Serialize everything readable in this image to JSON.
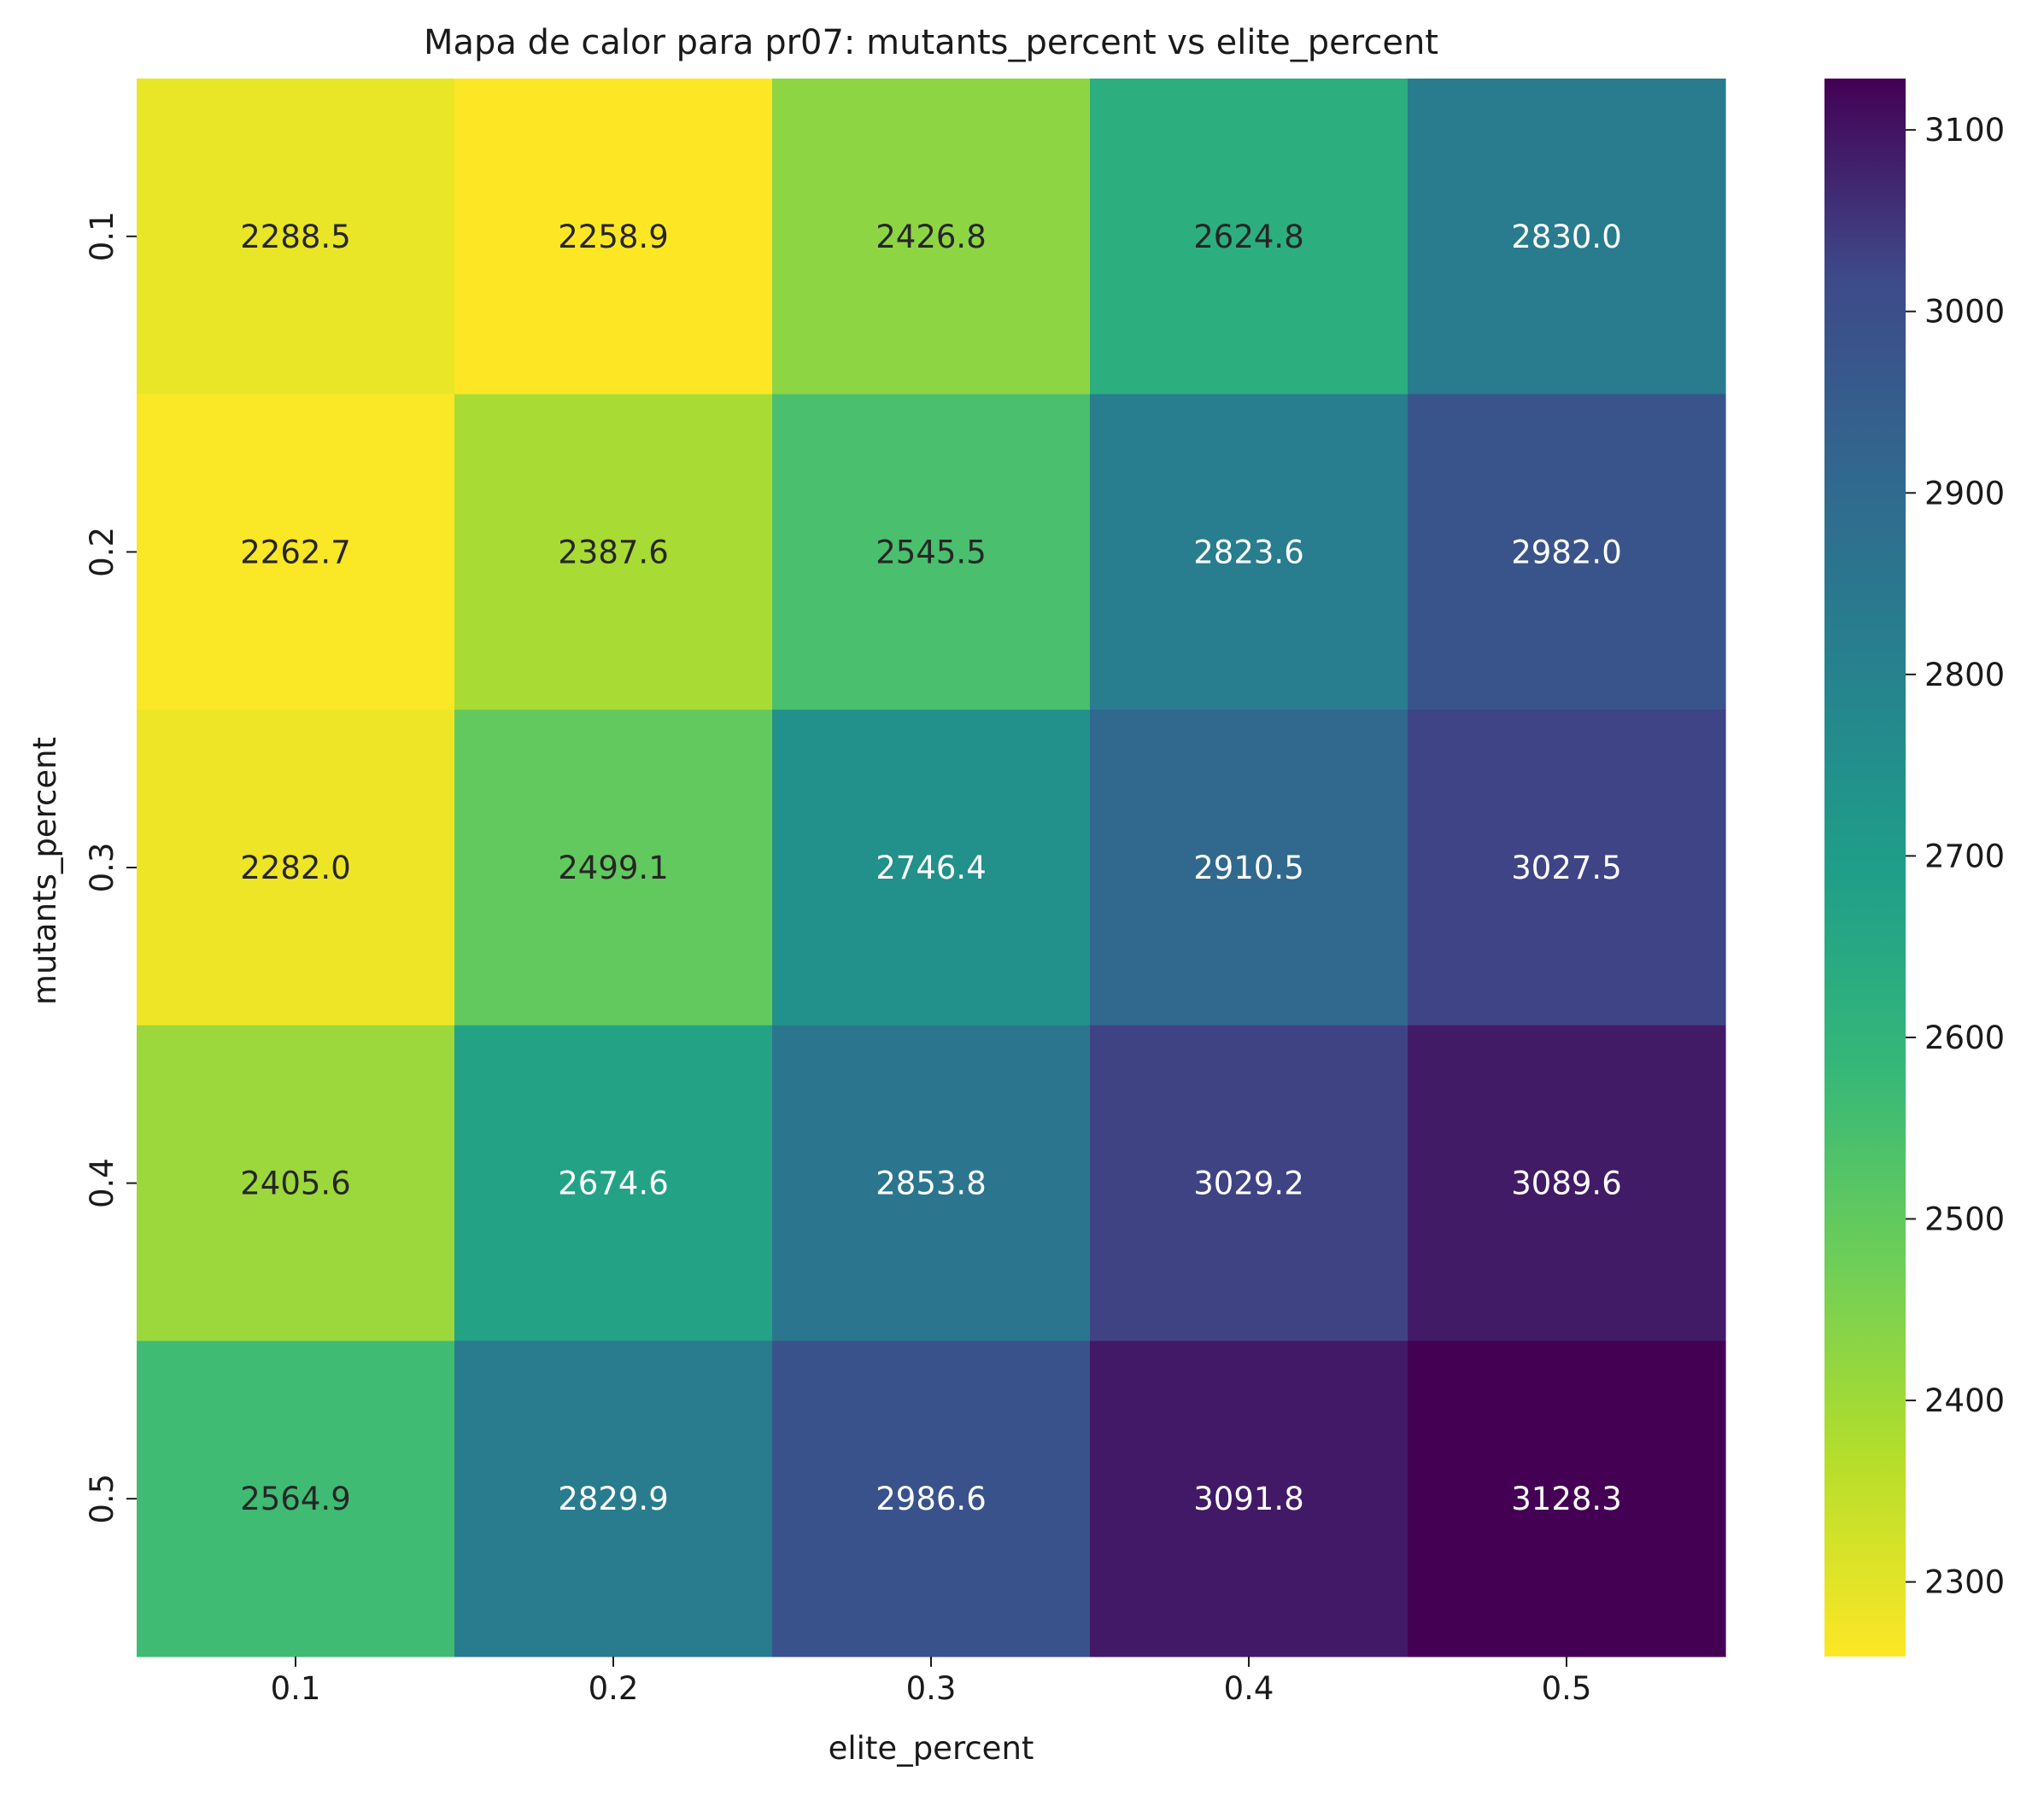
{
  "chart_data": {
    "type": "heatmap",
    "title": "Mapa de calor para pr07: mutants_percent vs elite_percent",
    "xlabel": "elite_percent",
    "ylabel": "mutants_percent",
    "x_categories": [
      "0.1",
      "0.2",
      "0.3",
      "0.4",
      "0.5"
    ],
    "y_categories": [
      "0.1",
      "0.2",
      "0.3",
      "0.4",
      "0.5"
    ],
    "values": [
      [
        2288.5,
        2258.9,
        2426.8,
        2624.8,
        2830.0
      ],
      [
        2262.7,
        2387.6,
        2545.5,
        2823.6,
        2982.0
      ],
      [
        2282.0,
        2499.1,
        2746.4,
        2910.5,
        3027.5
      ],
      [
        2405.6,
        2674.6,
        2853.8,
        3029.2,
        3089.6
      ],
      [
        2564.9,
        2829.9,
        2986.6,
        3091.8,
        3128.3
      ]
    ],
    "colormap": "viridis_r",
    "vmin": 2258.9,
    "vmax": 3128.3,
    "colorbar_ticks": [
      2300,
      2400,
      2500,
      2600,
      2700,
      2800,
      2900,
      3000,
      3100
    ],
    "annotation_format": "0.1f"
  }
}
